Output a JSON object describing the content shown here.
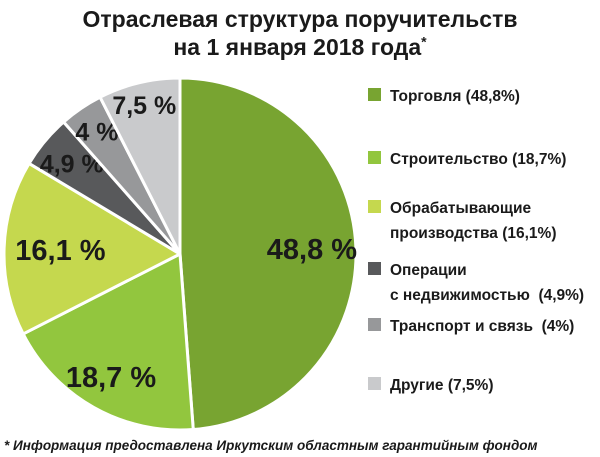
{
  "title": {
    "line1": "Отраслевая структура поручительств",
    "line2": "на 1 января 2018 года",
    "sup": "*"
  },
  "footnote": "* Информация предоставлена Иркутским областным гарантийным фондом",
  "text_color": "#1a1a1a",
  "background_color": "#ffffff",
  "chart_data": {
    "type": "pie",
    "title": "Отраслевая структура поручительств на 1 января 2018 года",
    "legend_position": "right",
    "start_angle_deg": 0,
    "direction": "clockwise",
    "slices": [
      {
        "label": "Торговля",
        "value": 48.8,
        "pie_label": "48,8 %",
        "legend_lines": [
          "Торговля (48,8%)"
        ],
        "color": "#78A431"
      },
      {
        "label": "Строительство",
        "value": 18.7,
        "pie_label": "18,7 %",
        "legend_lines": [
          "Строительство (18,7%)"
        ],
        "color": "#92C63E"
      },
      {
        "label": "Обрабатывающие производства",
        "value": 16.1,
        "pie_label": "16,1 %",
        "legend_lines": [
          "Обрабатывающие",
          "производства (16,1%)"
        ],
        "color": "#C5D84E"
      },
      {
        "label": "Операции с недвижимостью",
        "value": 4.9,
        "pie_label": "4,9 %",
        "legend_lines": [
          "Операции",
          "с недвижимостью  (4,9%)"
        ],
        "color": "#58595B"
      },
      {
        "label": "Транспорт и связь",
        "value": 4.0,
        "pie_label": "4 %",
        "legend_lines": [
          "Транспорт и связь  (4%)"
        ],
        "color": "#97989A"
      },
      {
        "label": "Другие",
        "value": 7.5,
        "pie_label": "7,5 %",
        "legend_lines": [
          "Другие (7,5%)"
        ],
        "color": "#C9CACC"
      }
    ]
  }
}
